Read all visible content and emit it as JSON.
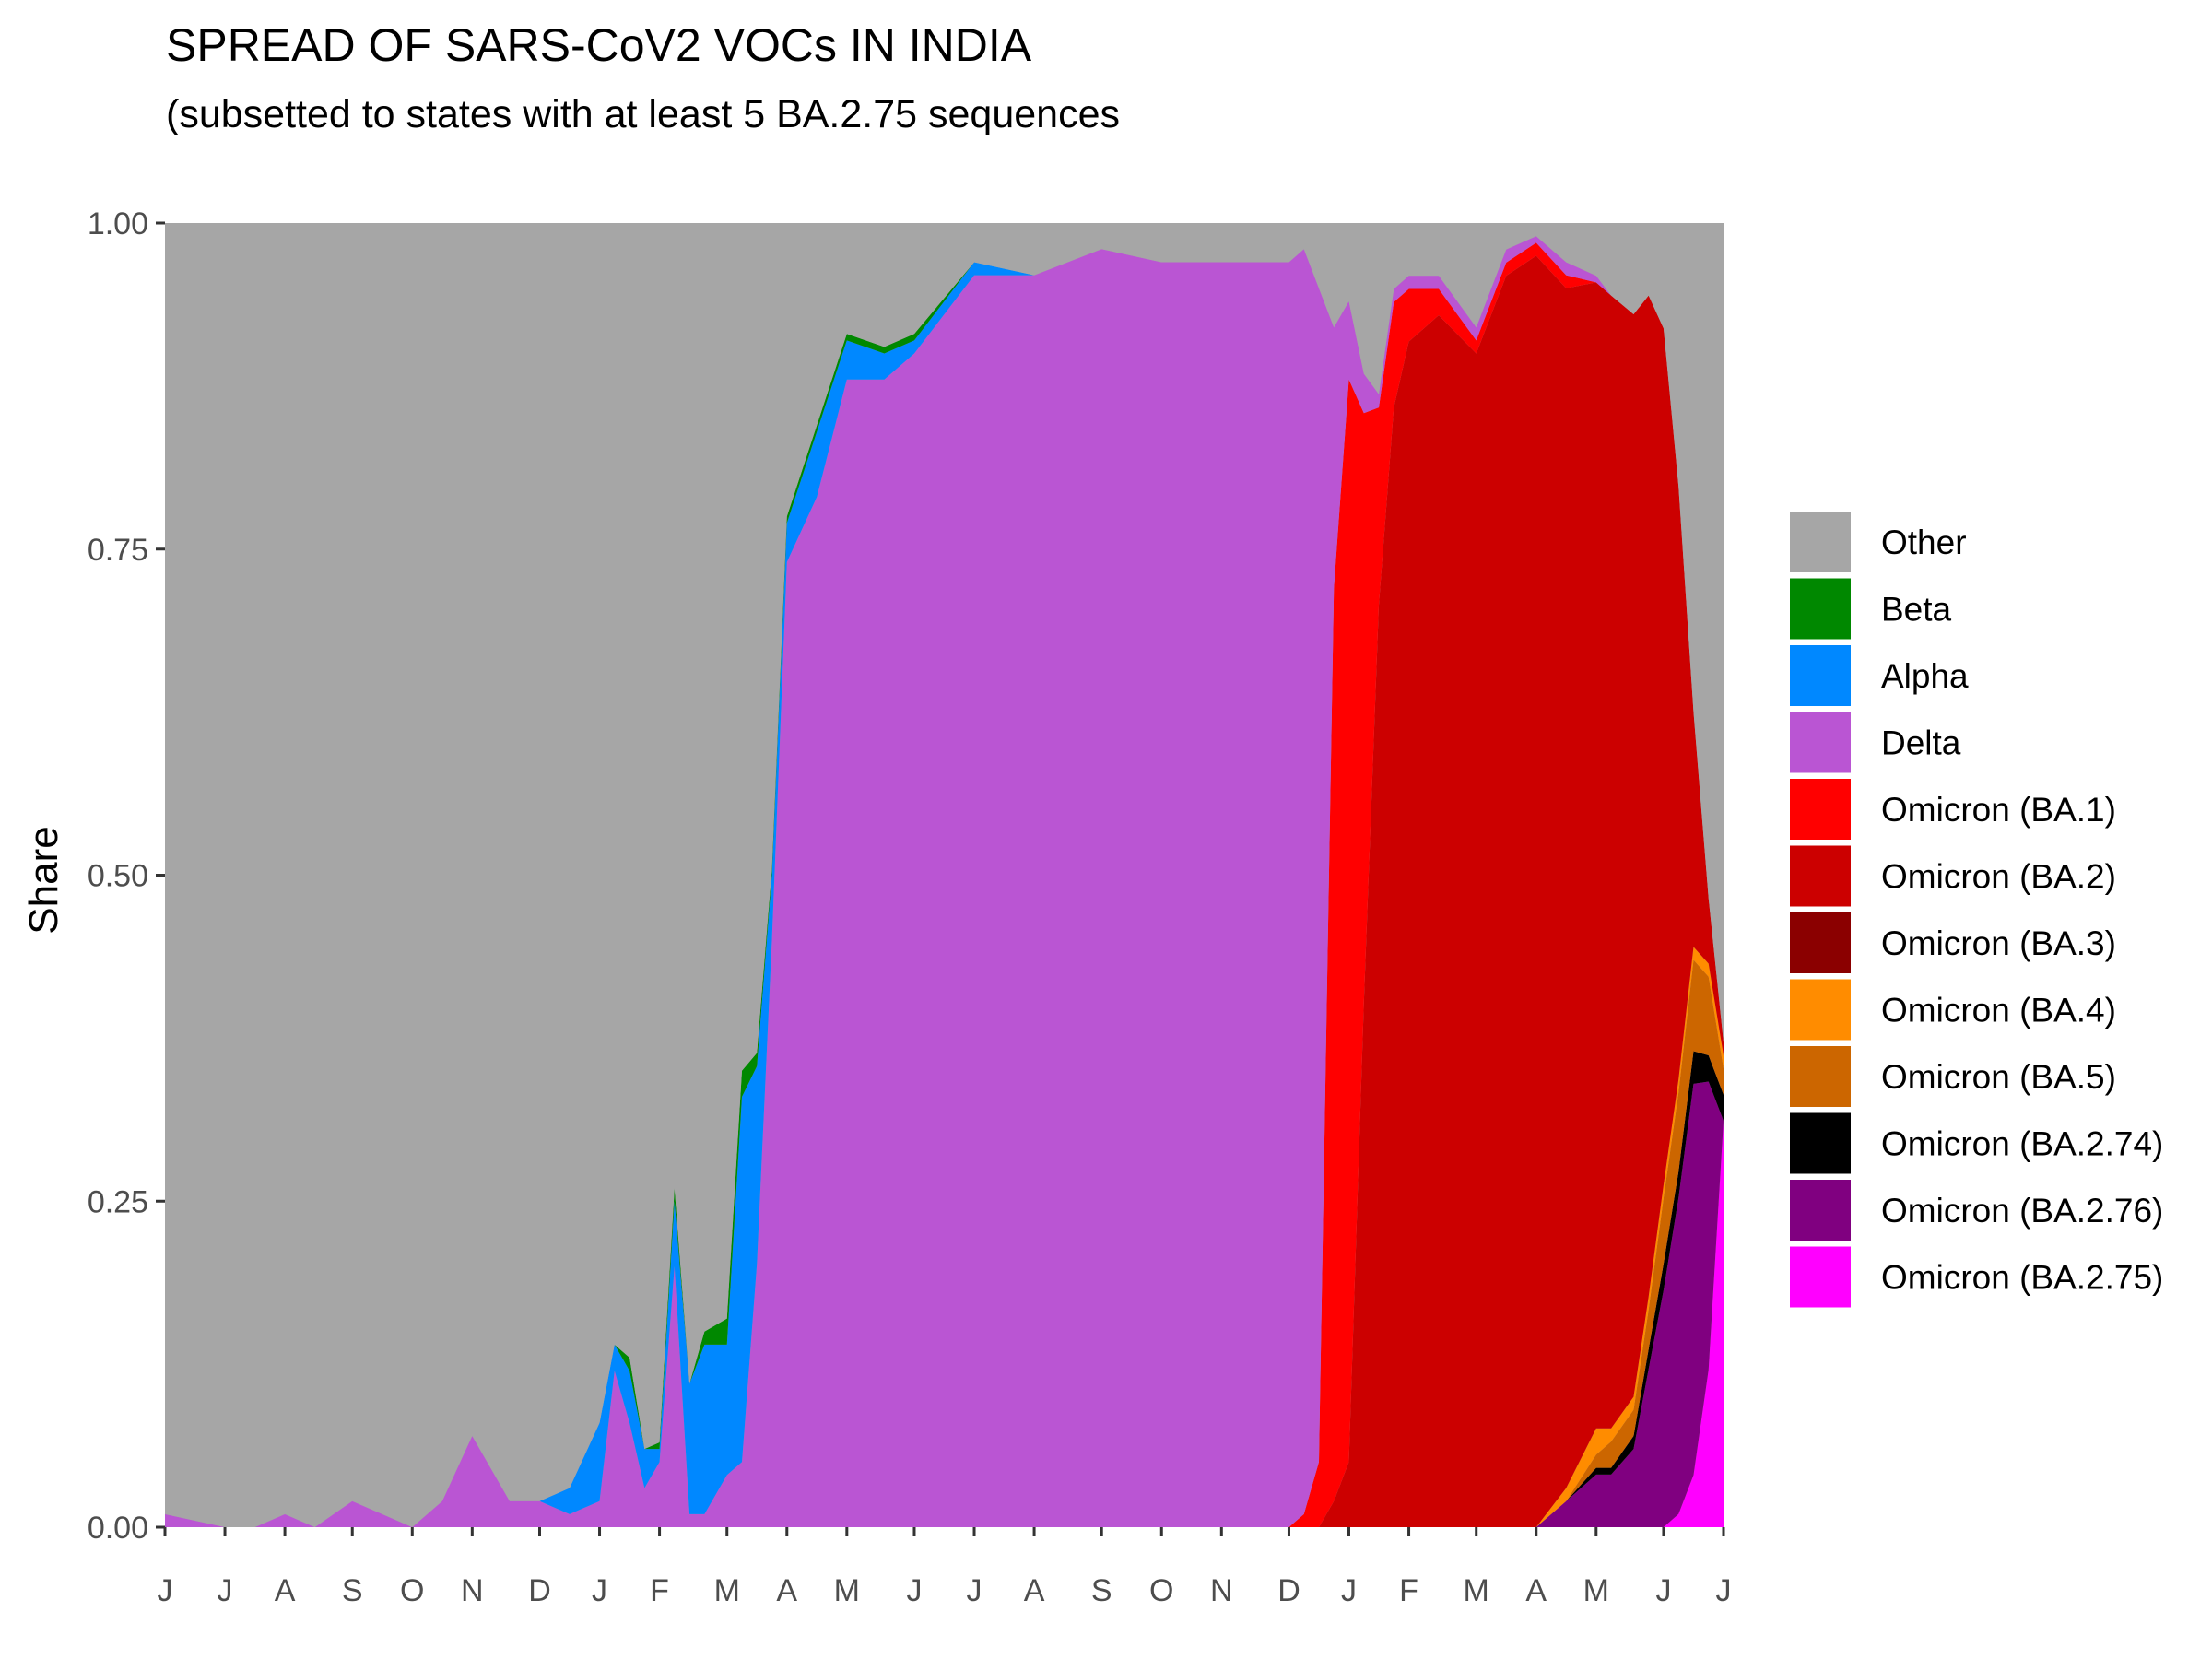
{
  "chart_data": {
    "type": "area",
    "stacked": "fill",
    "title": "SPREAD OF SARS-CoV2 VOCs IN INDIA",
    "subtitle": "(subsetted to states with at least 5 BA.2.75 sequences",
    "xlabel": "",
    "ylabel": "Share",
    "ylim": [
      0,
      1
    ],
    "grid": false,
    "panel_background": "#a6a6a6",
    "legend_position": "right",
    "y_ticks": [
      "0.00",
      "0.25",
      "0.50",
      "0.75",
      "1.00"
    ],
    "y_tick_values": [
      0,
      0.25,
      0.5,
      0.75,
      1
    ],
    "x_ticks": [
      "J",
      "J",
      "A",
      "S",
      "O",
      "N",
      "D",
      "J",
      "F",
      "M",
      "A",
      "M",
      "J",
      "J",
      "A",
      "S",
      "O",
      "N",
      "D",
      "J",
      "F",
      "M",
      "A",
      "M",
      "J",
      "J"
    ],
    "x_tick_values": [
      2020.42,
      2020.5,
      2020.58,
      2020.67,
      2020.75,
      2020.83,
      2020.92,
      2021.0,
      2021.08,
      2021.17,
      2021.25,
      2021.33,
      2021.42,
      2021.5,
      2021.58,
      2021.67,
      2021.75,
      2021.83,
      2021.92,
      2022.0,
      2022.08,
      2022.17,
      2022.25,
      2022.33,
      2022.42,
      2022.5
    ],
    "x": [
      2020.42,
      2020.5,
      2020.54,
      2020.58,
      2020.62,
      2020.67,
      2020.71,
      2020.75,
      2020.79,
      2020.83,
      2020.88,
      2020.92,
      2020.96,
      2021.0,
      2021.02,
      2021.04,
      2021.06,
      2021.08,
      2021.1,
      2021.12,
      2021.14,
      2021.17,
      2021.19,
      2021.21,
      2021.23,
      2021.25,
      2021.29,
      2021.33,
      2021.38,
      2021.42,
      2021.5,
      2021.58,
      2021.67,
      2021.75,
      2021.83,
      2021.88,
      2021.92,
      2021.94,
      2021.96,
      2021.98,
      2022.0,
      2022.02,
      2022.04,
      2022.06,
      2022.08,
      2022.12,
      2022.17,
      2022.21,
      2022.25,
      2022.29,
      2022.33,
      2022.35,
      2022.38,
      2022.4,
      2022.42,
      2022.44,
      2022.46,
      2022.48,
      2022.5
    ],
    "series": [
      {
        "name": "Omicron (BA.2.75)",
        "color": "#ff00ff",
        "values": [
          0,
          0,
          0,
          0,
          0,
          0,
          0,
          0,
          0,
          0,
          0,
          0,
          0,
          0,
          0,
          0,
          0,
          0,
          0,
          0,
          0,
          0,
          0,
          0,
          0,
          0,
          0,
          0,
          0,
          0,
          0,
          0,
          0,
          0,
          0,
          0,
          0,
          0,
          0,
          0,
          0,
          0,
          0,
          0,
          0,
          0,
          0,
          0,
          0,
          0,
          0,
          0,
          0,
          0,
          0,
          0.01,
          0.04,
          0.12,
          0.31
        ]
      },
      {
        "name": "Omicron (BA.2.76)",
        "color": "#800080",
        "values": [
          0,
          0,
          0,
          0,
          0,
          0,
          0,
          0,
          0,
          0,
          0,
          0,
          0,
          0,
          0,
          0,
          0,
          0,
          0,
          0,
          0,
          0,
          0,
          0,
          0,
          0,
          0,
          0,
          0,
          0,
          0,
          0,
          0,
          0,
          0,
          0,
          0,
          0,
          0,
          0,
          0,
          0,
          0,
          0,
          0,
          0,
          0,
          0,
          0,
          0.02,
          0.04,
          0.04,
          0.06,
          0.12,
          0.18,
          0.24,
          0.3,
          0.22,
          0.0
        ]
      },
      {
        "name": "Omicron (BA.2.74)",
        "color": "#000000",
        "values": [
          0,
          0,
          0,
          0,
          0,
          0,
          0,
          0,
          0,
          0,
          0,
          0,
          0,
          0,
          0,
          0,
          0,
          0,
          0,
          0,
          0,
          0,
          0,
          0,
          0,
          0,
          0,
          0,
          0,
          0,
          0,
          0,
          0,
          0,
          0,
          0,
          0,
          0,
          0,
          0,
          0,
          0,
          0,
          0,
          0,
          0,
          0,
          0,
          0,
          0,
          0.005,
          0.005,
          0.01,
          0.015,
          0.02,
          0.02,
          0.025,
          0.02,
          0.02
        ]
      },
      {
        "name": "Omicron (BA.5)",
        "color": "#cc6600",
        "values": [
          0,
          0,
          0,
          0,
          0,
          0,
          0,
          0,
          0,
          0,
          0,
          0,
          0,
          0,
          0,
          0,
          0,
          0,
          0,
          0,
          0,
          0,
          0,
          0,
          0,
          0,
          0,
          0,
          0,
          0,
          0,
          0,
          0,
          0,
          0,
          0,
          0,
          0,
          0,
          0,
          0,
          0,
          0,
          0,
          0,
          0,
          0,
          0,
          0,
          0,
          0.01,
          0.02,
          0.02,
          0.03,
          0.05,
          0.06,
          0.07,
          0.06,
          0.02
        ]
      },
      {
        "name": "Omicron (BA.4)",
        "color": "#ff8c00",
        "values": [
          0,
          0,
          0,
          0,
          0,
          0,
          0,
          0,
          0,
          0,
          0,
          0,
          0,
          0,
          0,
          0,
          0,
          0,
          0,
          0,
          0,
          0,
          0,
          0,
          0,
          0,
          0,
          0,
          0,
          0,
          0,
          0,
          0,
          0,
          0,
          0,
          0,
          0,
          0,
          0,
          0,
          0,
          0,
          0,
          0,
          0,
          0,
          0,
          0,
          0.01,
          0.02,
          0.01,
          0.01,
          0.01,
          0.01,
          0.01,
          0.01,
          0.01,
          0.01
        ]
      },
      {
        "name": "Omicron (BA.3)",
        "color": "#8b0000",
        "values": [
          0,
          0,
          0,
          0,
          0,
          0,
          0,
          0,
          0,
          0,
          0,
          0,
          0,
          0,
          0,
          0,
          0,
          0,
          0,
          0,
          0,
          0,
          0,
          0,
          0,
          0,
          0,
          0,
          0,
          0,
          0,
          0,
          0,
          0,
          0,
          0,
          0,
          0,
          0,
          0,
          0,
          0,
          0,
          0,
          0,
          0,
          0,
          0,
          0,
          0,
          0,
          0,
          0,
          0,
          0,
          0,
          0,
          0,
          0
        ]
      },
      {
        "name": "Omicron (BA.2)",
        "color": "#cc0000",
        "values": [
          0,
          0,
          0,
          0,
          0,
          0,
          0,
          0,
          0,
          0,
          0,
          0,
          0,
          0,
          0,
          0,
          0,
          0,
          0,
          0,
          0,
          0,
          0,
          0,
          0,
          0,
          0,
          0,
          0,
          0,
          0,
          0,
          0,
          0,
          0,
          0,
          0,
          0,
          0,
          0.02,
          0.05,
          0.4,
          0.7,
          0.85,
          0.9,
          0.92,
          0.9,
          0.95,
          0.97,
          0.92,
          0.87,
          0.86,
          0.83,
          0.76,
          0.65,
          0.45,
          0.18,
          0.05,
          0.01
        ]
      },
      {
        "name": "Omicron (BA.1)",
        "color": "#ff0000",
        "values": [
          0,
          0,
          0,
          0,
          0,
          0,
          0,
          0,
          0,
          0,
          0,
          0,
          0,
          0,
          0,
          0,
          0,
          0,
          0,
          0,
          0,
          0,
          0,
          0,
          0,
          0,
          0,
          0,
          0,
          0,
          0,
          0,
          0,
          0,
          0,
          0,
          0,
          0.01,
          0.05,
          0.7,
          0.83,
          0.45,
          0.15,
          0.08,
          0.04,
          0.02,
          0.01,
          0.01,
          0.01,
          0.01,
          0,
          0,
          0,
          0,
          0,
          0,
          0,
          0,
          0
        ]
      },
      {
        "name": "Delta",
        "color": "#ba55d3",
        "values": [
          0.01,
          0,
          0,
          0.01,
          0,
          0.02,
          0.01,
          0,
          0.02,
          0.07,
          0.02,
          0.02,
          0.01,
          0.02,
          0.12,
          0.08,
          0.03,
          0.05,
          0.2,
          0.01,
          0.01,
          0.04,
          0.05,
          0.2,
          0.45,
          0.74,
          0.79,
          0.88,
          0.88,
          0.9,
          0.96,
          0.96,
          0.98,
          0.97,
          0.97,
          0.97,
          0.97,
          0.97,
          0.9,
          0.2,
          0.06,
          0.03,
          0.01,
          0.01,
          0.01,
          0.01,
          0.01,
          0.01,
          0.005,
          0.01,
          0.005,
          0,
          0,
          0,
          0,
          0,
          0,
          0,
          0
        ]
      },
      {
        "name": "Alpha",
        "color": "#0088ff",
        "values": [
          0,
          0,
          0,
          0,
          0,
          0,
          0,
          0,
          0,
          0,
          0,
          0,
          0.02,
          0.06,
          0.02,
          0.04,
          0.03,
          0.01,
          0.05,
          0.1,
          0.13,
          0.1,
          0.28,
          0.15,
          0.05,
          0.03,
          0.05,
          0.03,
          0.02,
          0.01,
          0.01,
          0,
          0,
          0,
          0,
          0,
          0,
          0,
          0,
          0,
          0,
          0,
          0,
          0,
          0,
          0,
          0,
          0,
          0,
          0,
          0,
          0,
          0,
          0,
          0,
          0,
          0,
          0,
          0
        ]
      },
      {
        "name": "Beta",
        "color": "#008800",
        "values": [
          0,
          0,
          0,
          0,
          0,
          0,
          0,
          0,
          0,
          0,
          0,
          0,
          0,
          0,
          0,
          0.01,
          0,
          0.005,
          0.01,
          0,
          0.01,
          0.02,
          0.02,
          0.01,
          0.005,
          0.005,
          0.005,
          0.005,
          0.005,
          0.005,
          0,
          0,
          0,
          0,
          0,
          0,
          0,
          0,
          0,
          0,
          0,
          0,
          0,
          0,
          0,
          0,
          0,
          0,
          0,
          0,
          0,
          0,
          0,
          0,
          0,
          0,
          0,
          0,
          0
        ]
      },
      {
        "name": "Other",
        "color": "#a6a6a6",
        "values": [
          0.99,
          1,
          1,
          0.99,
          1,
          0.98,
          0.99,
          1,
          0.98,
          0.93,
          0.98,
          0.98,
          0.97,
          0.92,
          0.86,
          0.87,
          0.94,
          0.935,
          0.74,
          0.89,
          0.85,
          0.84,
          0.65,
          0.63,
          0.495,
          0.225,
          0.155,
          0.085,
          0.095,
          0.085,
          0.03,
          0.04,
          0.02,
          0.03,
          0.03,
          0.03,
          0.03,
          0.02,
          0.05,
          0.08,
          0.06,
          0.115,
          0.13,
          0.05,
          0.04,
          0.04,
          0.08,
          0.02,
          0.01,
          0.03,
          0.04,
          0.055,
          0.07,
          0.055,
          0.08,
          0.2,
          0.375,
          0.515,
          0.625
        ]
      }
    ],
    "legend": [
      "Other",
      "Beta",
      "Alpha",
      "Delta",
      "Omicron (BA.1)",
      "Omicron (BA.2)",
      "Omicron (BA.3)",
      "Omicron (BA.4)",
      "Omicron (BA.5)",
      "Omicron (BA.2.74)",
      "Omicron (BA.2.76)",
      "Omicron (BA.2.75)"
    ]
  }
}
